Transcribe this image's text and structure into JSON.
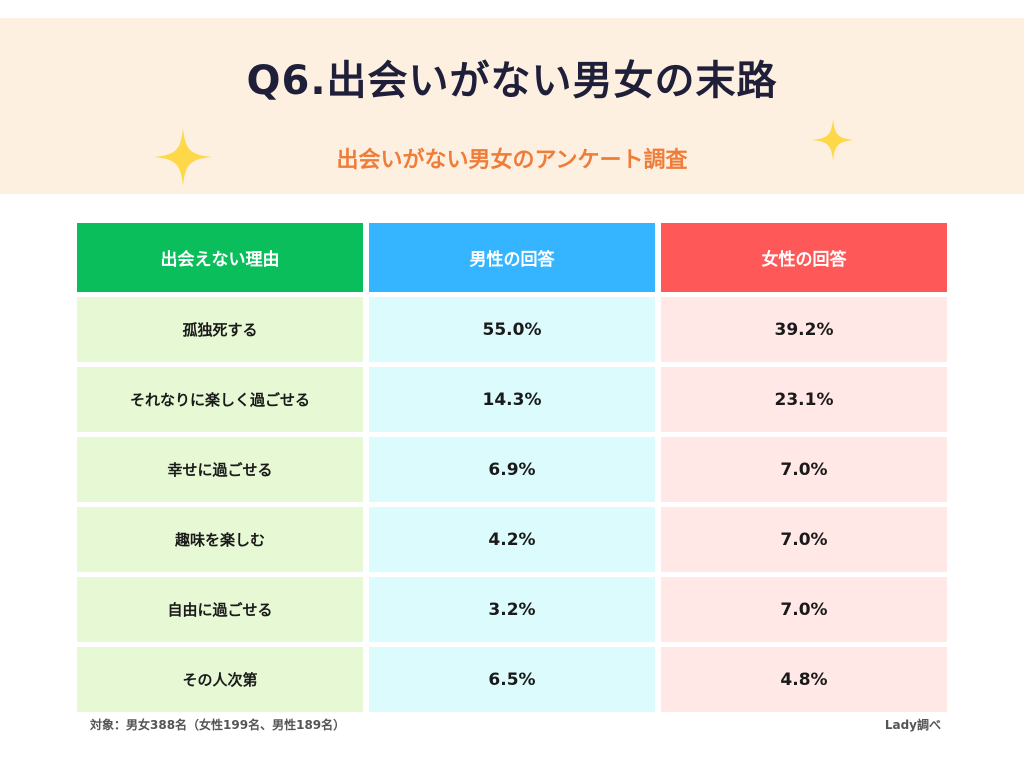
{
  "header": {
    "title": "Q6.出会いがない男女の末路",
    "subtitle": "出会いがない男女のアンケート調査"
  },
  "colors": {
    "band": "#fdf0e1",
    "title": "#1f1f3a",
    "subtitle": "#ef7d3a",
    "sparkle": "#ffd84a",
    "col1_header": "#0abf5b",
    "col2_header": "#35b5ff",
    "col3_header": "#ff5858",
    "col1_cell": "#e6f8d4",
    "col2_cell": "#dbfbfd",
    "col3_cell": "#ffe8e6"
  },
  "chart_data": {
    "type": "table",
    "title": "Q6.出会いがない男女の末路",
    "subtitle": "出会いがない男女のアンケート調査",
    "columns": [
      "出会えない理由",
      "男性の回答",
      "女性の回答"
    ],
    "rows": [
      [
        "孤独死する",
        "55.0%",
        "39.2%"
      ],
      [
        "それなりに楽しく過ごせる",
        "14.3%",
        "23.1%"
      ],
      [
        "幸せに過ごせる",
        "6.9%",
        "7.0%"
      ],
      [
        "趣味を楽しむ",
        "4.2%",
        "7.0%"
      ],
      [
        "自由に過ごせる",
        "3.2%",
        "7.0%"
      ],
      [
        "その人次第",
        "6.5%",
        "4.8%"
      ]
    ]
  },
  "footer": {
    "note": "対象：男女388名（女性199名、男性189名）",
    "source": "Lady調べ"
  }
}
